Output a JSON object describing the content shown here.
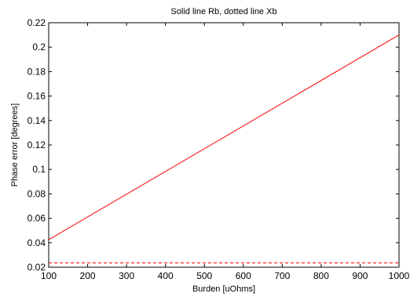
{
  "chart_data": {
    "type": "line",
    "title": "Solid line Rb, dotted line Xb",
    "xlabel": "Burden [uOhms]",
    "ylabel": "Phase error [degrees]",
    "xlim": [
      100,
      1000
    ],
    "ylim": [
      0.02,
      0.22
    ],
    "xticks": [
      100,
      200,
      300,
      400,
      500,
      600,
      700,
      800,
      900,
      1000
    ],
    "xtick_labels": [
      "100",
      "200",
      "300",
      "400",
      "500",
      "600",
      "700",
      "800",
      "900",
      "1000"
    ],
    "yticks": [
      0.02,
      0.04,
      0.06,
      0.08,
      0.1,
      0.12,
      0.14,
      0.16,
      0.18,
      0.2,
      0.22
    ],
    "ytick_labels": [
      "0.02",
      "0.04",
      "0.06",
      "0.08",
      "0.1",
      "0.12",
      "0.14",
      "0.16",
      "0.18",
      "0.2",
      "0.22"
    ],
    "grid": false,
    "series": [
      {
        "style": "solid",
        "color": "#ff0000",
        "x": [
          100,
          1000
        ],
        "y": [
          0.0425,
          0.21
        ]
      },
      {
        "style": "dotted",
        "color": "#ff0000",
        "x": [
          100,
          1000
        ],
        "y": [
          0.0235,
          0.0235
        ]
      }
    ]
  }
}
